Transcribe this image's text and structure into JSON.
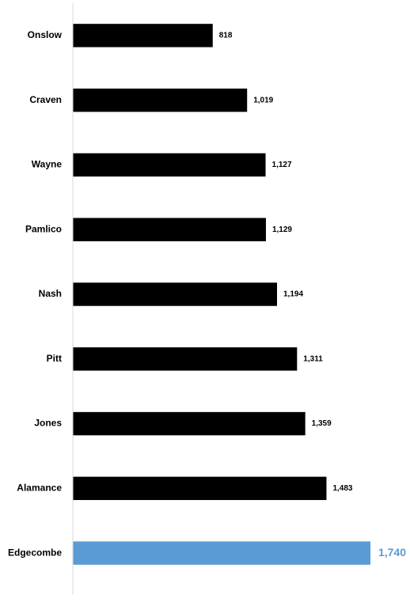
{
  "chart_data": {
    "type": "bar",
    "orientation": "horizontal",
    "categories": [
      "Onslow",
      "Craven",
      "Wayne",
      "Pamlico",
      "Nash",
      "Pitt",
      "Jones",
      "Alamance",
      "Edgecombe"
    ],
    "values": [
      818,
      1019,
      1127,
      1129,
      1194,
      1311,
      1359,
      1483,
      1740
    ],
    "value_labels": [
      "818",
      "1,019",
      "1,127",
      "1,129",
      "1,194",
      "1,311",
      "1,359",
      "1,483",
      "1,740"
    ],
    "highlight_category": "Edgecombe",
    "xlim": [
      0,
      1740
    ],
    "grid": false,
    "legend": "none",
    "title": "",
    "xlabel": "",
    "ylabel": ""
  },
  "colors": {
    "bar": "#000000",
    "highlight_bar": "#5b9bd5",
    "highlight_label": "#5b9bd5",
    "axis_line": "#d9d9d9",
    "label": "#000000"
  }
}
